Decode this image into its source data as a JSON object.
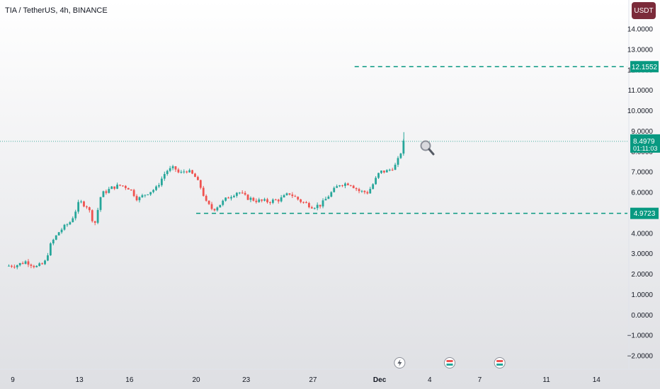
{
  "header": {
    "title": "TIA / TetherUS, 4h, BINANCE",
    "currency": "USDT"
  },
  "colors": {
    "up": "#26a69a",
    "down": "#ef5350",
    "line": "#089981",
    "current": "#089981",
    "icon": "#7b2b3a"
  },
  "chart_data": {
    "type": "candlestick",
    "ylim": [
      -2.0,
      14.0
    ],
    "y_ticks": [
      "14.0000",
      "13.0000",
      "12.0000",
      "11.0000",
      "10.0000",
      "9.0000",
      "8.0000",
      "7.0000",
      "6.0000",
      "5.0000",
      "4.0000",
      "3.0000",
      "2.0000",
      "1.0000",
      "0.0000",
      "−1.0000",
      "−2.0000"
    ],
    "x_ticks": [
      {
        "label": "9",
        "day": 9
      },
      {
        "label": "13",
        "day": 13
      },
      {
        "label": "16",
        "day": 16
      },
      {
        "label": "20",
        "day": 20
      },
      {
        "label": "23",
        "day": 23
      },
      {
        "label": "27",
        "day": 27
      },
      {
        "label": "Dec",
        "day": 31,
        "bold": true
      },
      {
        "label": "4",
        "day": 34
      },
      {
        "label": "7",
        "day": 37
      },
      {
        "label": "11",
        "day": 41
      },
      {
        "label": "14",
        "day": 44
      }
    ],
    "current_price": {
      "value": 8.4979,
      "label": "8.4979",
      "countdown": "01:11:03"
    },
    "levels": [
      {
        "value": 12.1552,
        "label": "12.1552"
      },
      {
        "value": 4.9723,
        "label": "4.9723"
      }
    ],
    "price_path": [
      [
        8.6,
        2.4
      ],
      [
        9.2,
        2.43
      ],
      [
        9.8,
        2.62
      ],
      [
        10.4,
        2.35
      ],
      [
        10.9,
        2.52
      ],
      [
        11.3,
        3.5
      ],
      [
        11.8,
        4.1
      ],
      [
        12.5,
        4.6
      ],
      [
        13.0,
        5.55
      ],
      [
        13.5,
        5.3
      ],
      [
        13.9,
        4.4
      ],
      [
        14.3,
        5.9
      ],
      [
        15.0,
        6.25
      ],
      [
        15.5,
        6.35
      ],
      [
        16.0,
        6.2
      ],
      [
        16.5,
        5.65
      ],
      [
        17.0,
        5.95
      ],
      [
        17.6,
        6.2
      ],
      [
        18.2,
        7.05
      ],
      [
        18.7,
        7.2
      ],
      [
        19.0,
        6.9
      ],
      [
        19.4,
        7.1
      ],
      [
        19.9,
        6.8
      ],
      [
        20.3,
        6.2
      ],
      [
        20.6,
        5.5
      ],
      [
        21.0,
        5.15
      ],
      [
        21.4,
        5.4
      ],
      [
        21.9,
        5.75
      ],
      [
        22.5,
        6.05
      ],
      [
        23.0,
        5.75
      ],
      [
        23.6,
        5.6
      ],
      [
        24.3,
        5.55
      ],
      [
        25.0,
        5.65
      ],
      [
        25.6,
        5.95
      ],
      [
        26.3,
        5.55
      ],
      [
        27.0,
        5.3
      ],
      [
        27.5,
        5.4
      ],
      [
        28.0,
        5.9
      ],
      [
        28.6,
        6.4
      ],
      [
        29.2,
        6.45
      ],
      [
        29.8,
        6.05
      ],
      [
        30.3,
        6.0
      ],
      [
        30.6,
        6.4
      ],
      [
        31.0,
        7.0
      ],
      [
        31.5,
        7.05
      ],
      [
        32.0,
        7.35
      ],
      [
        32.35,
        8.15
      ],
      [
        32.45,
        8.5
      ]
    ],
    "marker_icons": [
      {
        "name": "lightning-icon",
        "day": 32.2
      },
      {
        "name": "flag-icon",
        "day": 35.2
      },
      {
        "name": "flag-icon",
        "day": 38.2
      }
    ]
  }
}
